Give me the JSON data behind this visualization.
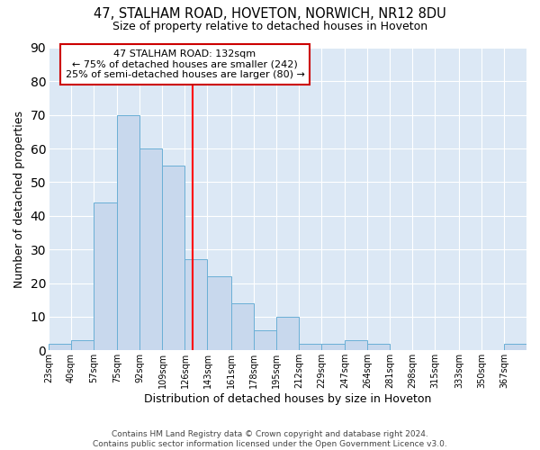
{
  "title1": "47, STALHAM ROAD, HOVETON, NORWICH, NR12 8DU",
  "title2": "Size of property relative to detached houses in Hoveton",
  "xlabel": "Distribution of detached houses by size in Hoveton",
  "ylabel": "Number of detached properties",
  "bin_labels": [
    "23sqm",
    "40sqm",
    "57sqm",
    "75sqm",
    "92sqm",
    "109sqm",
    "126sqm",
    "143sqm",
    "161sqm",
    "178sqm",
    "195sqm",
    "212sqm",
    "229sqm",
    "247sqm",
    "264sqm",
    "281sqm",
    "298sqm",
    "315sqm",
    "333sqm",
    "350sqm",
    "367sqm"
  ],
  "bin_edges": [
    23,
    40,
    57,
    75,
    92,
    109,
    126,
    143,
    161,
    178,
    195,
    212,
    229,
    247,
    264,
    281,
    298,
    315,
    333,
    350,
    367,
    384
  ],
  "values": [
    2,
    3,
    44,
    70,
    60,
    55,
    27,
    22,
    14,
    6,
    10,
    2,
    2,
    3,
    2,
    0,
    0,
    0,
    0,
    0,
    2
  ],
  "bar_color": "#c8d8ed",
  "bar_edge_color": "#6aafd6",
  "vline_x": 132,
  "vline_color": "#ff0000",
  "annotation_line1": "47 STALHAM ROAD: 132sqm",
  "annotation_line2": "← 75% of detached houses are smaller (242)",
  "annotation_line3": "25% of semi-detached houses are larger (80) →",
  "annotation_box_color": "white",
  "annotation_box_edge": "#cc0000",
  "footer": "Contains HM Land Registry data © Crown copyright and database right 2024.\nContains public sector information licensed under the Open Government Licence v3.0.",
  "ylim": [
    0,
    90
  ],
  "background_color": "#ffffff",
  "plot_background": "#dce8f5"
}
